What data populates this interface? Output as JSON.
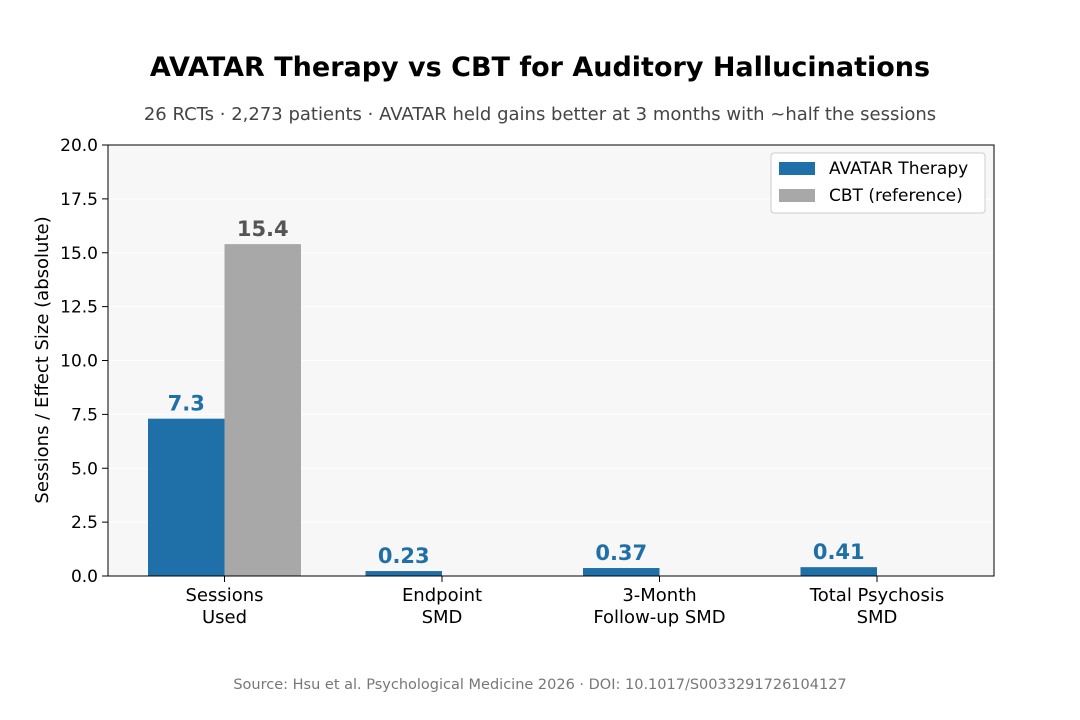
{
  "chart_data": {
    "type": "bar",
    "title": "AVATAR Therapy vs CBT for Auditory Hallucinations",
    "subtitle": "26 RCTs · 2,273 patients · AVATAR held gains better at 3 months with ~half the sessions",
    "source": "Source: Hsu et al. Psychological Medicine 2026 · DOI: 10.1017/S0033291726104127",
    "xlabel": "",
    "ylabel": "Sessions / Effect Size (absolute)",
    "ylim": [
      0,
      20
    ],
    "yticks": [
      "0.0",
      "2.5",
      "5.0",
      "7.5",
      "10.0",
      "12.5",
      "15.0",
      "17.5",
      "20.0"
    ],
    "categories": [
      [
        "Sessions",
        "Used"
      ],
      [
        "Endpoint",
        "SMD"
      ],
      [
        "3-Month",
        "Follow-up SMD"
      ],
      [
        "Total Psychosis",
        "SMD"
      ]
    ],
    "series": [
      {
        "name": "AVATAR Therapy",
        "color": "#1f6fa8",
        "values": [
          7.3,
          0.23,
          0.37,
          0.41
        ],
        "labels": [
          "7.3",
          "0.23",
          "0.37",
          "0.41"
        ]
      },
      {
        "name": "CBT (reference)",
        "color": "#a8a8a8",
        "values": [
          15.4,
          null,
          null,
          null
        ],
        "labels": [
          "15.4",
          "",
          "",
          ""
        ]
      }
    ],
    "grid": "y",
    "legend": "top-right",
    "background": "#f7f7f7"
  }
}
